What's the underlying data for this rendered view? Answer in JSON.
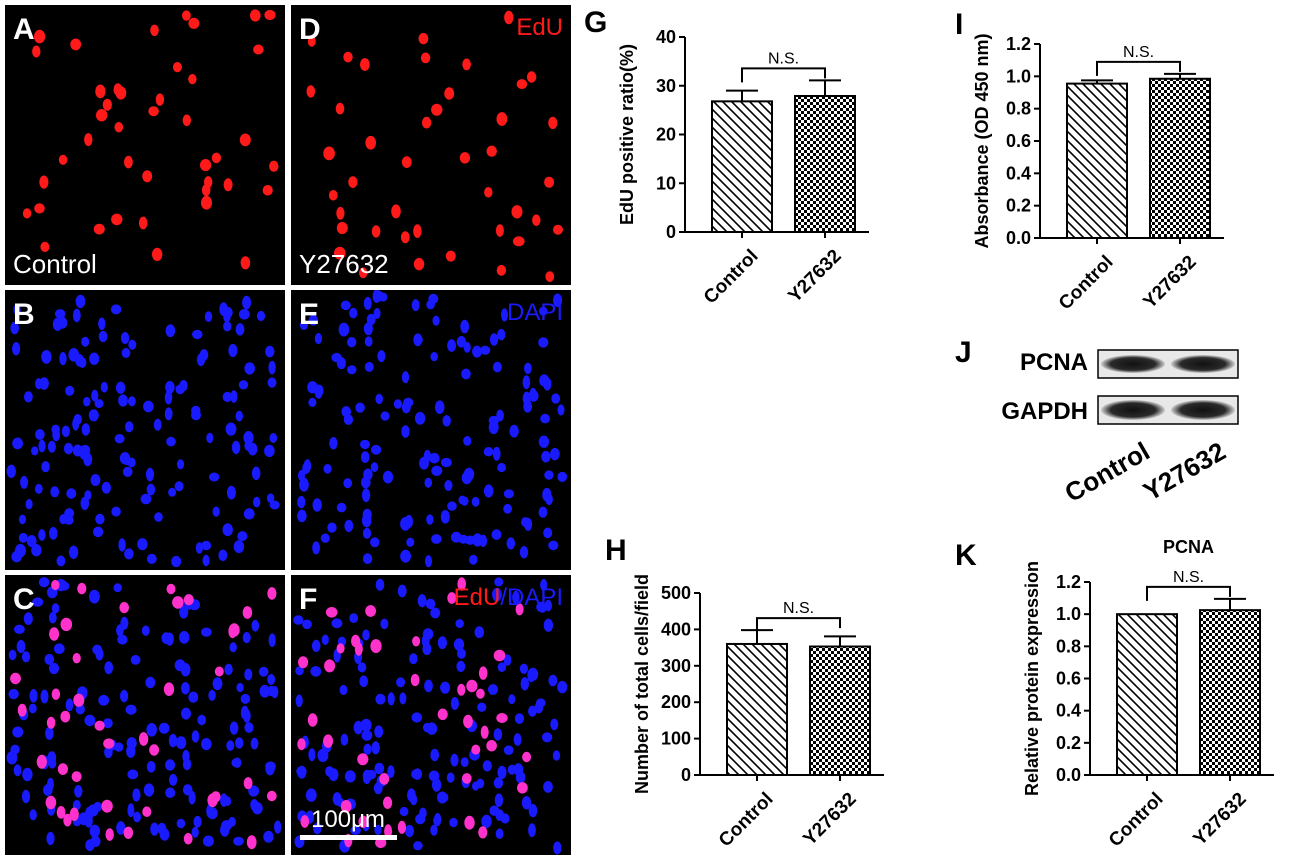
{
  "micrographs": [
    {
      "letter": "A",
      "condition": "Control",
      "channel": "",
      "stain": "edu"
    },
    {
      "letter": "B",
      "condition": "",
      "channel": "",
      "stain": "dapi"
    },
    {
      "letter": "C",
      "condition": "",
      "channel": "",
      "stain": "merge"
    },
    {
      "letter": "D",
      "condition": "Y27632",
      "channel": "EdU",
      "stain": "edu"
    },
    {
      "letter": "E",
      "condition": "",
      "channel": "DAPI",
      "stain": "dapi"
    },
    {
      "letter": "F",
      "condition": "",
      "channel": "",
      "stain": "merge"
    }
  ],
  "merge_label": {
    "edu": "EdU",
    "slash": "/",
    "dapi": "DAPI"
  },
  "scale_bar": "100μm",
  "colors": {
    "edu": "#ff1a1a",
    "dapi": "#1a1aff",
    "merge": "#ff33cc",
    "background": "#000000"
  },
  "western_blot": {
    "letter": "J",
    "bands": [
      "PCNA",
      "GAPDH"
    ],
    "lanes": [
      "Control",
      "Y27632"
    ]
  },
  "chart_data": [
    {
      "letter": "G",
      "type": "bar",
      "title": "",
      "ylabel": "EdU positive ratio(%)",
      "xlabel": "",
      "categories": [
        "Control",
        "Y27632"
      ],
      "values": [
        26.8,
        27.9
      ],
      "errors": [
        2.2,
        3.2
      ],
      "ylim": [
        0,
        40
      ],
      "yticks": [
        "0",
        "10",
        "20",
        "30",
        "40"
      ],
      "significance": "N.S.",
      "patterns": [
        "diagonal",
        "checker"
      ]
    },
    {
      "letter": "H",
      "type": "bar",
      "title": "",
      "ylabel": "Number of total cells/field",
      "xlabel": "",
      "categories": [
        "Control",
        "Y27632"
      ],
      "values": [
        360,
        353
      ],
      "errors": [
        38,
        28
      ],
      "ylim": [
        0,
        500
      ],
      "yticks": [
        "0",
        "100",
        "200",
        "300",
        "400",
        "500"
      ],
      "significance": "N.S.",
      "patterns": [
        "diagonal",
        "checker"
      ]
    },
    {
      "letter": "I",
      "type": "bar",
      "title": "",
      "ylabel": "Absorbance (OD 450 nm)",
      "xlabel": "",
      "categories": [
        "Control",
        "Y27632"
      ],
      "values": [
        0.955,
        0.985
      ],
      "errors": [
        0.02,
        0.03
      ],
      "ylim": [
        0,
        1.2
      ],
      "yticks": [
        "0.0",
        "0.2",
        "0.4",
        "0.6",
        "0.8",
        "1.0",
        "1.2"
      ],
      "significance": "N.S.",
      "patterns": [
        "diagonal",
        "checker"
      ]
    },
    {
      "letter": "K",
      "type": "bar",
      "title": "PCNA",
      "ylabel": "Relative protein expression",
      "xlabel": "",
      "categories": [
        "Control",
        "Y27632"
      ],
      "values": [
        1.0,
        1.025
      ],
      "errors": [
        0,
        0.07
      ],
      "ylim": [
        0,
        1.2
      ],
      "yticks": [
        "0.0",
        "0.2",
        "0.4",
        "0.6",
        "0.8",
        "1.0",
        "1.2"
      ],
      "significance": "N.S.",
      "patterns": [
        "diagonal",
        "checker"
      ]
    }
  ]
}
